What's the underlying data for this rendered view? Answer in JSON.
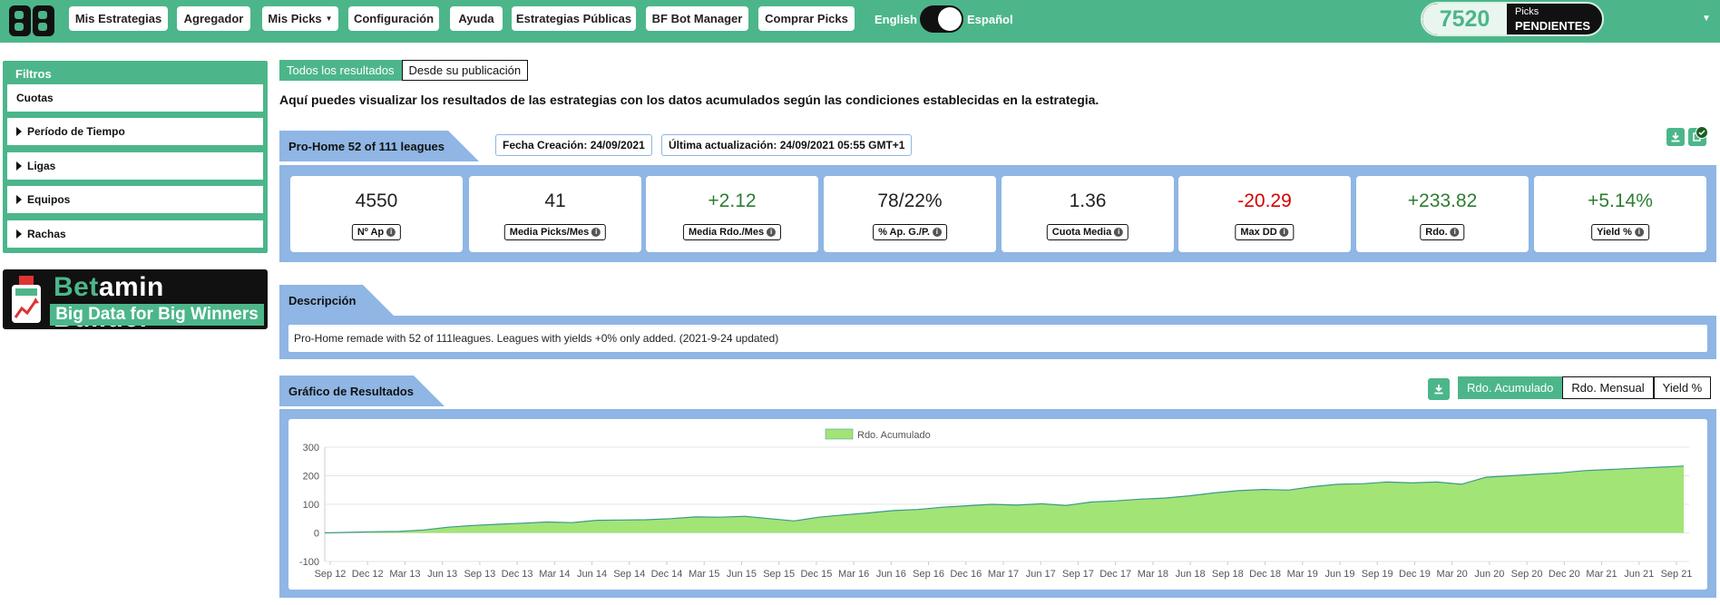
{
  "nav": {
    "buttons": [
      "Mis Estrategias",
      "Agregador",
      "Mis Picks",
      "Configuración",
      "Ayuda",
      "Estrategias Públicas",
      "BF Bot Manager",
      "Comprar Picks"
    ],
    "lang_english": "English",
    "lang_spanish": "Español",
    "picks_count": "7520",
    "picks_label_1": "Picks",
    "picks_label_2": "PENDIENTES"
  },
  "sidebar": {
    "title": "Filtros",
    "items": [
      "Cuotas",
      "Período de Tiempo",
      "Ligas",
      "Equipos",
      "Rachas"
    ],
    "brand_name_green": "Bet",
    "brand_name_rest": "amin Builder",
    "brand_tagline": "Big Data for Big Winners"
  },
  "tabs": [
    "Todos los resultados",
    "Desde su publicación"
  ],
  "intro": "Aquí puedes visualizar los resultados de las estrategias con los datos acumulados según las condiciones establecidas en la estrategia.",
  "strategy": {
    "name": "Pro-Home 52 of 111 leagues",
    "created": "Fecha Creación: 24/09/2021",
    "updated": "Última actualización: 24/09/2021 05:55 GMT+1"
  },
  "stats": [
    {
      "value": "4550",
      "label": "Nº Ap",
      "color": "#222222"
    },
    {
      "value": "41",
      "label": "Media Picks/Mes",
      "color": "#222222"
    },
    {
      "value": "+2.12",
      "label": "Media Rdo./Mes",
      "color": "#2e7d32"
    },
    {
      "value": "78/22%",
      "label": "% Ap. G./P.",
      "color": "#222222"
    },
    {
      "value": "1.36",
      "label": "Cuota Media",
      "color": "#222222"
    },
    {
      "value": "-20.29",
      "label": "Max DD",
      "color": "#d50000"
    },
    {
      "value": "+233.82",
      "label": "Rdo.",
      "color": "#2e7d32"
    },
    {
      "value": "+5.14%",
      "label": "Yield %",
      "color": "#2e7d32"
    }
  ],
  "description": {
    "title": "Descripción",
    "text": "Pro-Home remade with 52 of 111leagues. Leagues with yields +0% only added. (2021-9-24 updated)"
  },
  "chart_section": {
    "title": "Gráfico de Resultados",
    "buttons": [
      "Rdo. Acumulado",
      "Rdo. Mensual",
      "Yield %"
    ]
  },
  "chart_data": {
    "type": "area",
    "legend": "Rdo. Acumulado",
    "legend_position": "top-center",
    "fill_color": "#a3e477",
    "line_color": "#3a9a8a",
    "ylim": [
      -100,
      300
    ],
    "yticks": [
      300,
      200,
      100,
      0,
      -100
    ],
    "grid": true,
    "xtick_labels": [
      "Sep 12",
      "Dec 12",
      "Mar 13",
      "Jun 13",
      "Sep 13",
      "Dec 13",
      "Mar 14",
      "Jun 14",
      "Sep 14",
      "Dec 14",
      "Mar 15",
      "Jun 15",
      "Sep 15",
      "Dec 15",
      "Mar 16",
      "Jun 16",
      "Sep 16",
      "Dec 16",
      "Mar 17",
      "Jun 17",
      "Sep 17",
      "Dec 17",
      "Mar 18",
      "Jun 18",
      "Sep 18",
      "Dec 18",
      "Mar 19",
      "Jun 19",
      "Sep 19",
      "Dec 19",
      "Mar 20",
      "Jun 20",
      "Sep 20",
      "Dec 20",
      "Mar 21",
      "Jun 21",
      "Sep 21"
    ],
    "values": [
      0,
      2,
      4,
      5,
      10,
      20,
      26,
      30,
      34,
      38,
      36,
      44,
      45,
      46,
      50,
      56,
      55,
      58,
      50,
      42,
      55,
      63,
      70,
      78,
      82,
      90,
      95,
      100,
      97,
      102,
      96,
      108,
      112,
      118,
      122,
      130,
      140,
      148,
      152,
      150,
      162,
      170,
      172,
      178,
      175,
      178,
      170,
      195,
      200,
      205,
      210,
      218,
      222,
      226,
      230,
      234
    ]
  }
}
